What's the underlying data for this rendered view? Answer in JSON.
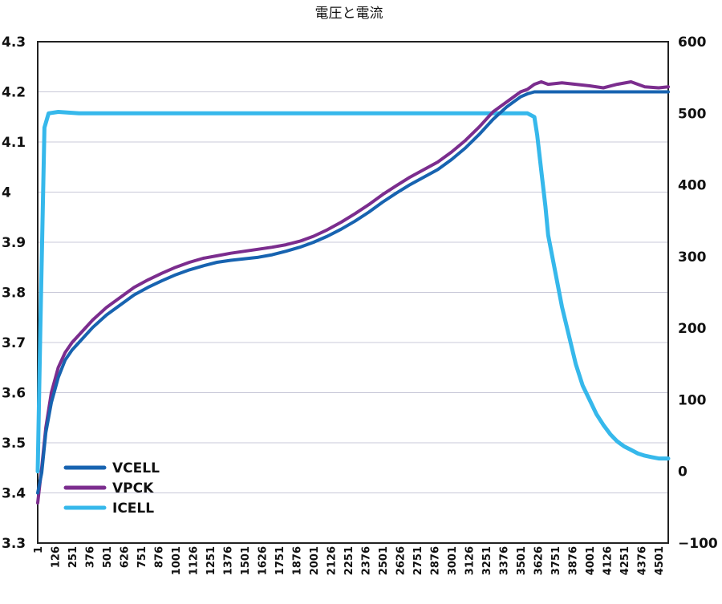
{
  "chart_data": {
    "type": "line",
    "title": "電圧と電流",
    "xlabel": "",
    "ylabel": "",
    "y2label": "",
    "grid": true,
    "legend_position": "bottom-left",
    "x_range": [
      1,
      4570
    ],
    "ylim": [
      3.3,
      4.3
    ],
    "y2lim": [
      -100,
      600
    ],
    "y_ticks": [
      "3.3",
      "3.4",
      "3.5",
      "3.6",
      "3.7",
      "3.8",
      "3.9",
      "4",
      "4.1",
      "4.2",
      "4.3"
    ],
    "y2_ticks": [
      "−100",
      "0",
      "100",
      "200",
      "300",
      "400",
      "500",
      "600"
    ],
    "x_ticks": [
      "1",
      "126",
      "251",
      "376",
      "501",
      "626",
      "751",
      "876",
      "1001",
      "1126",
      "1251",
      "1376",
      "1501",
      "1626",
      "1751",
      "1876",
      "2001",
      "2126",
      "2251",
      "2376",
      "2501",
      "2626",
      "2751",
      "2876",
      "3001",
      "3126",
      "3251",
      "3376",
      "3501",
      "3626",
      "3751",
      "3876",
      "4001",
      "4126",
      "4251",
      "4376",
      "4501"
    ],
    "series": [
      {
        "name": "VCELL",
        "axis": "left",
        "color": "#1763b0",
        "x": [
          1,
          30,
          60,
          100,
          150,
          200,
          250,
          300,
          400,
          500,
          600,
          700,
          800,
          900,
          1000,
          1100,
          1200,
          1300,
          1400,
          1500,
          1600,
          1700,
          1800,
          1900,
          2000,
          2100,
          2200,
          2300,
          2400,
          2500,
          2600,
          2700,
          2800,
          2900,
          3000,
          3100,
          3200,
          3300,
          3400,
          3500,
          3550,
          3600,
          3650,
          3700,
          3800,
          3900,
          4000,
          4100,
          4200,
          4300,
          4400,
          4500,
          4570
        ],
        "y": [
          3.4,
          3.44,
          3.52,
          3.58,
          3.63,
          3.665,
          3.685,
          3.7,
          3.73,
          3.755,
          3.775,
          3.795,
          3.81,
          3.823,
          3.835,
          3.845,
          3.853,
          3.86,
          3.864,
          3.867,
          3.87,
          3.875,
          3.882,
          3.89,
          3.9,
          3.912,
          3.926,
          3.942,
          3.96,
          3.98,
          3.998,
          4.015,
          4.03,
          4.045,
          4.065,
          4.088,
          4.115,
          4.145,
          4.17,
          4.19,
          4.196,
          4.2,
          4.2,
          4.2,
          4.2,
          4.2,
          4.2,
          4.2,
          4.2,
          4.2,
          4.2,
          4.2,
          4.2
        ]
      },
      {
        "name": "VPCK",
        "axis": "left",
        "color": "#7b2d8e",
        "x": [
          1,
          30,
          60,
          100,
          150,
          200,
          250,
          300,
          400,
          500,
          600,
          700,
          800,
          900,
          1000,
          1100,
          1200,
          1300,
          1400,
          1500,
          1600,
          1700,
          1800,
          1900,
          2000,
          2100,
          2200,
          2300,
          2400,
          2500,
          2600,
          2700,
          2800,
          2900,
          3000,
          3100,
          3200,
          3300,
          3400,
          3500,
          3550,
          3600,
          3650,
          3700,
          3800,
          3900,
          4000,
          4100,
          4200,
          4300,
          4400,
          4500,
          4570
        ],
        "y": [
          3.38,
          3.45,
          3.53,
          3.6,
          3.65,
          3.68,
          3.7,
          3.715,
          3.745,
          3.77,
          3.79,
          3.81,
          3.825,
          3.838,
          3.85,
          3.86,
          3.868,
          3.873,
          3.878,
          3.882,
          3.886,
          3.89,
          3.895,
          3.902,
          3.912,
          3.925,
          3.94,
          3.957,
          3.975,
          3.995,
          4.013,
          4.03,
          4.045,
          4.06,
          4.08,
          4.103,
          4.13,
          4.16,
          4.18,
          4.2,
          4.205,
          4.215,
          4.22,
          4.215,
          4.218,
          4.215,
          4.212,
          4.208,
          4.215,
          4.22,
          4.21,
          4.208,
          4.21
        ]
      },
      {
        "name": "ICELL",
        "axis": "right",
        "color": "#36b8eb",
        "x": [
          1,
          20,
          50,
          80,
          150,
          300,
          500,
          1000,
          1500,
          2000,
          2500,
          3000,
          3300,
          3550,
          3600,
          3620,
          3650,
          3680,
          3700,
          3750,
          3800,
          3850,
          3900,
          3950,
          4000,
          4050,
          4100,
          4150,
          4200,
          4250,
          4300,
          4350,
          4400,
          4450,
          4500,
          4570
        ],
        "y": [
          0,
          200,
          480,
          500,
          502,
          500,
          500,
          500,
          500,
          500,
          500,
          500,
          500,
          500,
          495,
          470,
          420,
          370,
          330,
          280,
          230,
          190,
          150,
          120,
          100,
          80,
          65,
          52,
          42,
          35,
          30,
          25,
          22,
          20,
          18,
          18
        ]
      }
    ]
  }
}
